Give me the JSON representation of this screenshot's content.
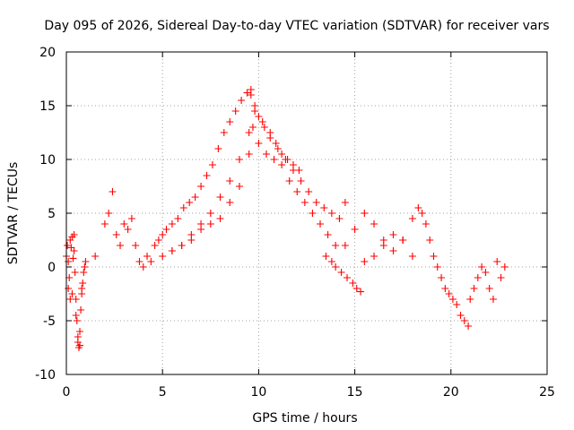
{
  "chart_data": {
    "type": "scatter",
    "title": "Day 095 of 2026, Sidereal Day-to-day VTEC variation (SDTVAR) for receiver vars",
    "xlabel": "GPS time / hours",
    "ylabel": "SDTVAR / TECUs",
    "xlim": [
      0,
      25
    ],
    "ylim": [
      -10,
      20
    ],
    "xticks": [
      0,
      5,
      10,
      15,
      20,
      25
    ],
    "yticks": [
      -10,
      -5,
      0,
      5,
      10,
      15,
      20
    ],
    "xtick_labels": [
      "0",
      "5",
      "10",
      "15",
      "20",
      "25"
    ],
    "ytick_labels": [
      "-10",
      "-5",
      "0",
      "5",
      "10",
      "15",
      "20"
    ],
    "grid": true,
    "marker": "+",
    "colors": {
      "series": "#ff0000",
      "grid": "#a0a0a0",
      "axis": "#000000"
    },
    "series": [
      {
        "name": "SDTVAR",
        "x": [
          0.0,
          0.05,
          0.1,
          0.15,
          0.2,
          0.25,
          0.3,
          0.35,
          0.4,
          0.45,
          0.5,
          0.55,
          0.6,
          0.65,
          0.7,
          0.75,
          0.8,
          0.85,
          0.9,
          0.95,
          1.0,
          0.1,
          0.2,
          0.3,
          0.4,
          0.5,
          0.6,
          0.7,
          0.8,
          1.5,
          2.0,
          2.2,
          2.4,
          2.6,
          2.8,
          3.0,
          3.2,
          3.4,
          3.6,
          3.8,
          4.0,
          4.2,
          4.4,
          4.6,
          4.8,
          5.0,
          5.2,
          5.5,
          5.8,
          6.1,
          6.4,
          6.7,
          7.0,
          7.3,
          7.6,
          7.9,
          8.2,
          8.5,
          8.8,
          9.1,
          9.4,
          9.6,
          5.0,
          5.5,
          6.0,
          6.5,
          7.0,
          7.5,
          8.0,
          8.5,
          9.0,
          9.5,
          5.5,
          6.0,
          6.5,
          7.0,
          7.5,
          8.0,
          8.5,
          9.0,
          9.5,
          9.6,
          9.8,
          10.0,
          10.3,
          10.6,
          10.9,
          11.2,
          11.5,
          11.8,
          12.1,
          9.8,
          10.2,
          10.6,
          11.0,
          11.4,
          11.8,
          12.2,
          12.6,
          13.0,
          13.4,
          13.8,
          14.2,
          14.5,
          9.7,
          10.0,
          10.4,
          10.8,
          11.2,
          11.6,
          12.0,
          12.4,
          12.8,
          13.2,
          13.6,
          14.0,
          13.5,
          13.8,
          14.0,
          14.3,
          14.6,
          14.9,
          15.1,
          15.3,
          14.5,
          15.0,
          15.5,
          16.0,
          16.5,
          17.0,
          17.5,
          18.0,
          18.3,
          15.5,
          16.0,
          16.5,
          17.0,
          17.5,
          18.0,
          18.5,
          18.7,
          18.9,
          19.1,
          19.3,
          19.5,
          19.7,
          19.9,
          20.1,
          20.3,
          20.5,
          20.7,
          20.9,
          21.0,
          21.2,
          21.4,
          21.6,
          21.8,
          22.0,
          22.2,
          22.4,
          22.6,
          22.8
        ],
        "y": [
          1.0,
          2.0,
          0.5,
          -1.0,
          2.5,
          1.8,
          -2.5,
          0.8,
          1.5,
          -0.5,
          -3.0,
          -5.0,
          -6.5,
          -7.5,
          -6.0,
          -4.0,
          -2.0,
          -1.5,
          -0.5,
          0.0,
          0.5,
          -2.0,
          -3.0,
          2.8,
          3.0,
          -4.5,
          -7.0,
          -7.3,
          -2.5,
          1.0,
          4.0,
          5.0,
          7.0,
          3.0,
          2.0,
          4.0,
          3.5,
          4.5,
          2.0,
          0.5,
          0.0,
          1.0,
          0.5,
          2.0,
          2.5,
          3.0,
          3.5,
          4.0,
          4.5,
          5.5,
          6.0,
          6.5,
          7.5,
          8.5,
          9.5,
          11.0,
          12.5,
          13.5,
          14.5,
          15.5,
          16.2,
          16.5,
          1.0,
          1.5,
          2.0,
          3.0,
          4.0,
          5.0,
          6.5,
          8.0,
          10.0,
          12.5,
          1.5,
          2.0,
          2.5,
          3.5,
          4.0,
          4.5,
          6.0,
          7.5,
          10.5,
          16.0,
          15.0,
          14.0,
          13.0,
          12.5,
          11.5,
          10.5,
          10.0,
          9.5,
          9.0,
          14.5,
          13.5,
          12.0,
          11.0,
          10.0,
          9.0,
          8.0,
          7.0,
          6.0,
          5.5,
          5.0,
          4.5,
          6.0,
          13.0,
          11.5,
          10.5,
          10.0,
          9.5,
          8.0,
          7.0,
          6.0,
          5.0,
          4.0,
          3.0,
          2.0,
          1.0,
          0.5,
          0.0,
          -0.5,
          -1.0,
          -1.5,
          -2.0,
          -2.3,
          2.0,
          3.5,
          5.0,
          4.0,
          2.5,
          3.0,
          2.5,
          4.5,
          5.5,
          0.5,
          1.0,
          2.0,
          1.5,
          2.5,
          1.0,
          5.0,
          4.0,
          2.5,
          1.0,
          0.0,
          -1.0,
          -2.0,
          -2.5,
          -3.0,
          -3.5,
          -4.5,
          -5.0,
          -5.5,
          -3.0,
          -2.0,
          -1.0,
          0.0,
          -0.5,
          -2.0,
          -3.0,
          0.5,
          -1.0,
          0.0
        ]
      }
    ]
  }
}
